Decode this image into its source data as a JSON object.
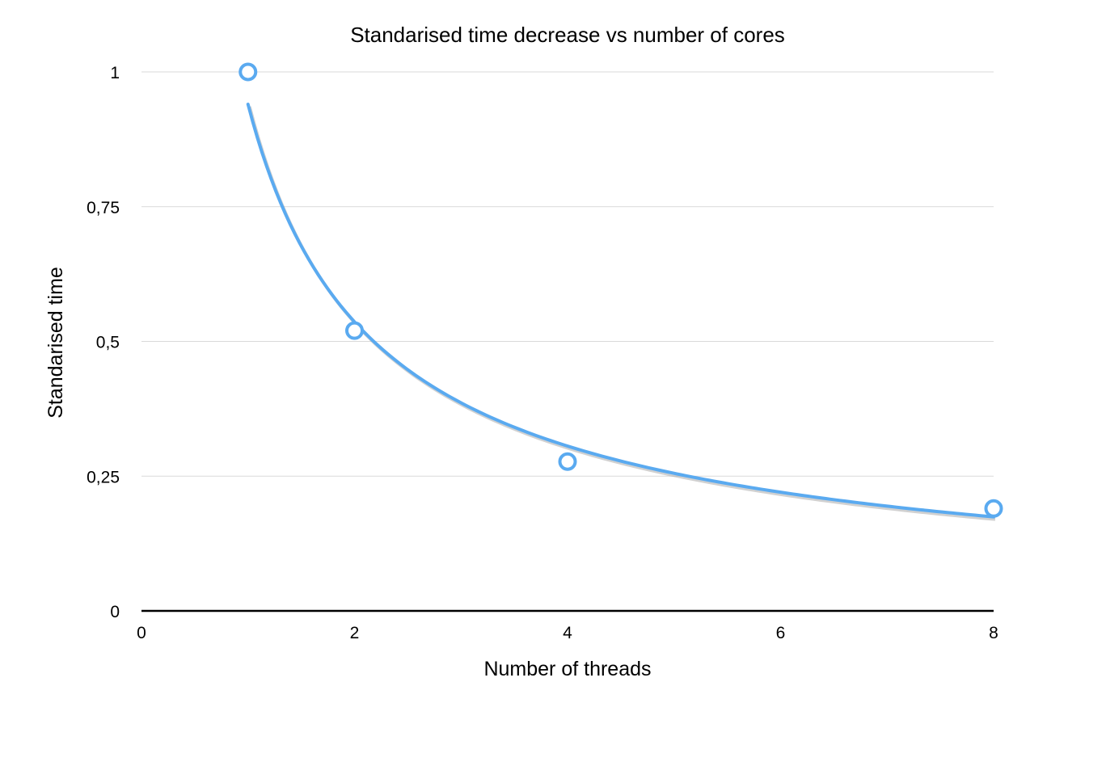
{
  "chart_data": {
    "type": "scatter",
    "title": "Standarised time decrease vs number of cores",
    "xlabel": "Number of threads",
    "ylabel": "Standarised time",
    "xlim": [
      0,
      8
    ],
    "ylim": [
      0,
      1
    ],
    "x_ticks": [
      0,
      2,
      4,
      6,
      8
    ],
    "x_tick_labels": [
      "0",
      "2",
      "4",
      "6",
      "8"
    ],
    "y_ticks": [
      0,
      0.25,
      0.5,
      0.75,
      1
    ],
    "y_tick_labels": [
      "0",
      "0,25",
      "0,5",
      "0,75",
      "1"
    ],
    "grid": "horizontal",
    "legend": "none",
    "series": [
      {
        "x": [
          1,
          2,
          4,
          8
        ],
        "y": [
          1.0,
          0.52,
          0.277,
          0.19
        ],
        "marker": "hollow-circle",
        "color": "#5aaaf0"
      }
    ],
    "trendline": {
      "type": "power",
      "coefficient": 0.94,
      "exponent": -0.81,
      "x_range": [
        1,
        8
      ],
      "color": "#5aaaf0"
    }
  }
}
